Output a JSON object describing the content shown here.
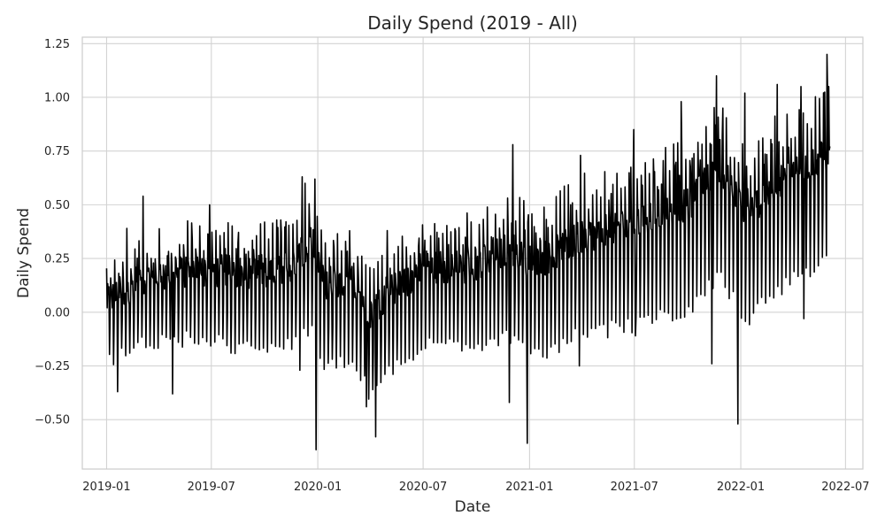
{
  "chart_data": {
    "type": "line",
    "title": "Daily Spend (2019 - All)",
    "xlabel": "Date",
    "ylabel": "Daily Spend",
    "x_range": [
      "2018-11-20",
      "2022-07-31"
    ],
    "ylim": [
      -0.73,
      1.28
    ],
    "grid": true,
    "x_ticks": [
      "2019-01",
      "2019-07",
      "2020-01",
      "2020-07",
      "2021-01",
      "2021-07",
      "2022-01",
      "2022-07"
    ],
    "x_tick_dates": [
      "2019-01-01",
      "2019-07-01",
      "2020-01-01",
      "2020-07-01",
      "2021-01-01",
      "2021-07-01",
      "2022-01-01",
      "2022-07-01"
    ],
    "y_ticks": [
      "1.25",
      "1.00",
      "0.75",
      "0.50",
      "0.25",
      "0.00",
      "−0.25",
      "−0.50"
    ],
    "y_tick_values": [
      1.25,
      1.0,
      0.75,
      0.5,
      0.25,
      0.0,
      -0.25,
      -0.5
    ],
    "series": [
      {
        "color": "#000000",
        "date_start": "2019-01-01",
        "date_end": "2022-06-04",
        "weekly_baseline": [
          [
            "2019-01-01",
            0.05
          ],
          [
            "2019-03-01",
            0.15
          ],
          [
            "2019-06-01",
            0.2
          ],
          [
            "2019-09-01",
            0.18
          ],
          [
            "2019-11-15",
            0.22
          ],
          [
            "2019-12-20",
            0.3
          ],
          [
            "2020-01-15",
            0.12
          ],
          [
            "2020-03-01",
            0.15
          ],
          [
            "2020-04-01",
            0.0
          ],
          [
            "2020-05-15",
            0.12
          ],
          [
            "2020-07-01",
            0.2
          ],
          [
            "2020-10-01",
            0.22
          ],
          [
            "2020-12-01",
            0.3
          ],
          [
            "2021-01-10",
            0.22
          ],
          [
            "2021-04-01",
            0.35
          ],
          [
            "2021-07-01",
            0.42
          ],
          [
            "2021-10-01",
            0.5
          ],
          [
            "2021-11-25",
            0.68
          ],
          [
            "2022-01-10",
            0.45
          ],
          [
            "2022-03-01",
            0.6
          ],
          [
            "2022-06-04",
            0.75
          ]
        ],
        "weekly_swing": [
          [
            "2019-01-01",
            0.28
          ],
          [
            "2019-06-01",
            0.32
          ],
          [
            "2019-12-01",
            0.38
          ],
          [
            "2020-04-01",
            0.38
          ],
          [
            "2020-07-01",
            0.35
          ],
          [
            "2021-01-01",
            0.42
          ],
          [
            "2021-07-01",
            0.48
          ],
          [
            "2022-01-01",
            0.5
          ],
          [
            "2022-06-04",
            0.5
          ]
        ],
        "spikes": [
          [
            "2019-01-20",
            -0.37
          ],
          [
            "2019-02-05",
            0.39
          ],
          [
            "2019-03-05",
            0.54
          ],
          [
            "2019-04-25",
            -0.38
          ],
          [
            "2019-06-28",
            0.5
          ],
          [
            "2019-12-01",
            -0.27
          ],
          [
            "2019-12-05",
            0.63
          ],
          [
            "2019-12-10",
            0.6
          ],
          [
            "2019-12-27",
            0.62
          ],
          [
            "2019-12-29",
            -0.64
          ],
          [
            "2020-03-25",
            -0.44
          ],
          [
            "2020-04-10",
            -0.58
          ],
          [
            "2020-04-30",
            0.38
          ],
          [
            "2020-11-27",
            -0.42
          ],
          [
            "2020-12-03",
            0.78
          ],
          [
            "2020-12-28",
            -0.61
          ],
          [
            "2021-03-28",
            -0.25
          ],
          [
            "2021-03-30",
            0.73
          ],
          [
            "2021-06-30",
            0.85
          ],
          [
            "2021-07-03",
            -0.11
          ],
          [
            "2021-09-20",
            0.98
          ],
          [
            "2021-11-12",
            -0.24
          ],
          [
            "2021-11-20",
            1.1
          ],
          [
            "2021-12-01",
            0.95
          ],
          [
            "2021-12-27",
            -0.52
          ],
          [
            "2022-01-08",
            1.02
          ],
          [
            "2022-03-05",
            1.06
          ],
          [
            "2022-04-15",
            1.05
          ],
          [
            "2022-04-20",
            -0.03
          ],
          [
            "2022-05-30",
            1.2
          ],
          [
            "2022-06-02",
            1.05
          ]
        ]
      }
    ]
  }
}
